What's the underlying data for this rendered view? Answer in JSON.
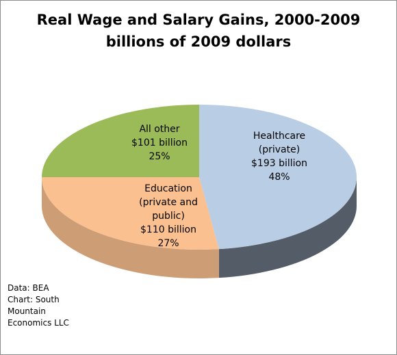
{
  "chart_data": {
    "type": "pie3d",
    "title": "Real Wage and Salary Gains, 2000-2009",
    "subtitle": "billions of 2009 dollars",
    "categories": [
      "Healthcare (private)",
      "Education (private and public)",
      "All other"
    ],
    "values": [
      48,
      27,
      25
    ],
    "value_labels": [
      "48%",
      "27%",
      "25%"
    ],
    "amount_labels": [
      "$193 billion",
      "$110 billion",
      "$101 billion"
    ],
    "colors": [
      "#b9cde5",
      "#fac090",
      "#9bbb59"
    ],
    "source": [
      "Data: BEA",
      "Chart: South Mountain Economics LLC"
    ]
  }
}
